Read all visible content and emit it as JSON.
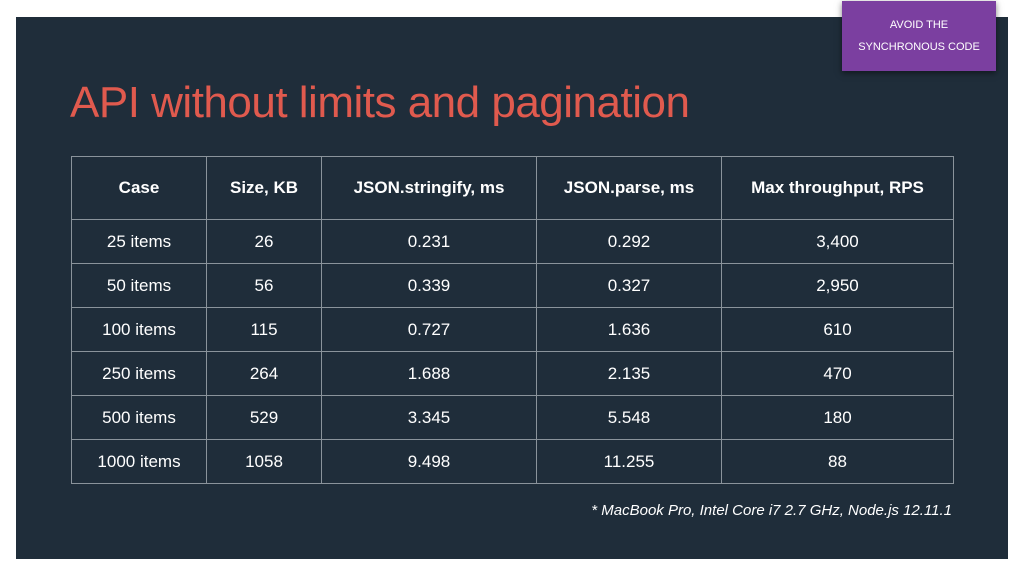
{
  "badge": {
    "line1": "AVOID THE",
    "line2": "SYNCHRONOUS CODE"
  },
  "title": "API without limits and pagination",
  "table": {
    "headers": [
      "Case",
      "Size, KB",
      "JSON.stringify, ms",
      "JSON.parse, ms",
      "Max throughput, RPS"
    ],
    "rows": [
      [
        "25 items",
        "26",
        "0.231",
        "0.292",
        "3,400"
      ],
      [
        "50 items",
        "56",
        "0.339",
        "0.327",
        "2,950"
      ],
      [
        "100 items",
        "115",
        "0.727",
        "1.636",
        "610"
      ],
      [
        "250 items",
        "264",
        "1.688",
        "2.135",
        "470"
      ],
      [
        "500 items",
        "529",
        "3.345",
        "5.548",
        "180"
      ],
      [
        "1000 items",
        "1058",
        "9.498",
        "11.255",
        "88"
      ]
    ]
  },
  "footnote": "* MacBook Pro, Intel Core i7 2.7 GHz, Node.js 12.11.1",
  "colors": {
    "background": "#1f2d3a",
    "title": "#e05a4e",
    "badge": "#7b3fa0"
  }
}
